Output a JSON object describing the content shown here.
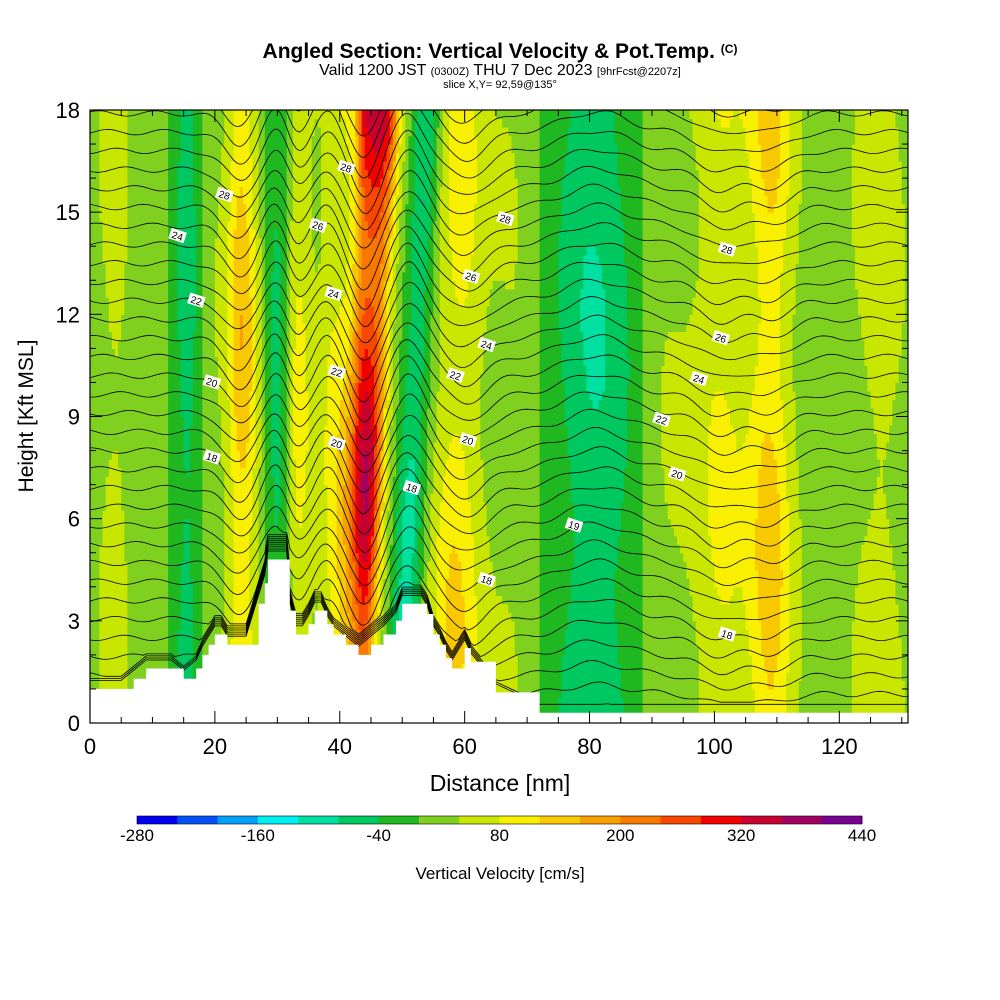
{
  "title": {
    "main": "Angled Section: Vertical Velocity & Pot.Temp.",
    "unit_tag": "(C)",
    "valid_prefix": "Valid 1200 JST",
    "valid_utc": "(0300Z)",
    "valid_date": "THU 7 Dec 2023",
    "valid_fcst": "[9hrFcst@2207z]",
    "slice": "slice X,Y= 92,59@135°"
  },
  "colorbar": {
    "title": "Vertical Velocity [cm/s]",
    "tick_labels": [
      "-280",
      "-160",
      "-40",
      "80",
      "200",
      "320",
      "440"
    ],
    "levels": [
      -280,
      -240,
      -200,
      -160,
      -120,
      -80,
      -40,
      0,
      40,
      80,
      120,
      160,
      200,
      240,
      280,
      320,
      360,
      400,
      440
    ],
    "colors": [
      "#0000f0",
      "#0050f8",
      "#00a0f8",
      "#00f0f0",
      "#00e0a0",
      "#00c860",
      "#20b820",
      "#80d020",
      "#c8e600",
      "#f8f000",
      "#f8c800",
      "#f8a000",
      "#f87800",
      "#f84800",
      "#f00000",
      "#c80030",
      "#a00060",
      "#780090"
    ]
  },
  "chart_data": {
    "type": "heatmap",
    "title": "Angled Section: Vertical Velocity & Pot.Temp. (C)",
    "xlabel": "Distance [nm]",
    "ylabel": "Height [Kft MSL]",
    "xlim": [
      0,
      131
    ],
    "ylim": [
      0,
      18
    ],
    "x_ticks": [
      0,
      20,
      40,
      60,
      80,
      100,
      120
    ],
    "y_ticks": [
      0,
      3,
      6,
      9,
      12,
      15,
      18
    ],
    "fill_variable": "Vertical Velocity [cm/s]",
    "contour_variable": "Potential Temperature (C)",
    "contour_interval": 1,
    "contour_labels": [
      {
        "x": 41,
        "y": 16.3,
        "text": "28"
      },
      {
        "x": 21.5,
        "y": 15.5,
        "text": "28"
      },
      {
        "x": 36.5,
        "y": 14.6,
        "text": "26"
      },
      {
        "x": 66.5,
        "y": 14.8,
        "text": "28"
      },
      {
        "x": 14,
        "y": 14.3,
        "text": "24"
      },
      {
        "x": 102,
        "y": 13.9,
        "text": "28"
      },
      {
        "x": 61,
        "y": 13.1,
        "text": "26"
      },
      {
        "x": 39,
        "y": 12.6,
        "text": "24"
      },
      {
        "x": 17,
        "y": 12.4,
        "text": "22"
      },
      {
        "x": 101,
        "y": 11.3,
        "text": "26"
      },
      {
        "x": 63.5,
        "y": 11.1,
        "text": "24"
      },
      {
        "x": 39.5,
        "y": 10.3,
        "text": "22"
      },
      {
        "x": 58.5,
        "y": 10.2,
        "text": "22"
      },
      {
        "x": 97.5,
        "y": 10.1,
        "text": "24"
      },
      {
        "x": 19.5,
        "y": 10.0,
        "text": "20"
      },
      {
        "x": 91.5,
        "y": 8.9,
        "text": "22"
      },
      {
        "x": 60.5,
        "y": 8.3,
        "text": "20"
      },
      {
        "x": 39.5,
        "y": 8.2,
        "text": "20"
      },
      {
        "x": 19.5,
        "y": 7.8,
        "text": "18"
      },
      {
        "x": 94,
        "y": 7.3,
        "text": "20"
      },
      {
        "x": 51.5,
        "y": 6.9,
        "text": "18"
      },
      {
        "x": 77.5,
        "y": 5.8,
        "text": "19"
      },
      {
        "x": 63.5,
        "y": 4.2,
        "text": "18"
      },
      {
        "x": 102,
        "y": 2.6,
        "text": "18"
      }
    ],
    "terrain_profile": {
      "x": [
        0,
        5,
        7,
        9,
        13,
        15,
        17,
        18,
        19,
        20,
        21,
        22,
        25,
        27,
        28,
        28.5,
        31.5,
        32,
        33,
        34,
        35,
        36,
        37,
        38,
        39,
        41,
        43,
        45,
        47,
        49,
        50,
        53,
        54,
        55,
        56,
        57,
        58,
        60,
        61,
        65,
        72,
        131
      ],
      "y": [
        1,
        1,
        1.3,
        1.6,
        1.6,
        1.3,
        1.6,
        2.0,
        2.3,
        2.6,
        2.6,
        2.3,
        2.3,
        3.5,
        4.1,
        4.8,
        4.8,
        3.3,
        2.6,
        2.6,
        2.9,
        3.3,
        3.3,
        2.9,
        2.6,
        2.3,
        2.0,
        2.3,
        2.6,
        3.0,
        3.5,
        3.5,
        3.2,
        2.6,
        2.3,
        1.9,
        1.6,
        2.2,
        1.8,
        0.9,
        0.3,
        0.3
      ]
    },
    "velocity_features": [
      {
        "x": 1,
        "w": 2.0,
        "v": 10
      },
      {
        "x": 4,
        "w": 2.4,
        "v": 95
      },
      {
        "x": 8,
        "w": 2.2,
        "v": -15
      },
      {
        "x": 12,
        "w": 2.2,
        "v": 70
      },
      {
        "x": 15.5,
        "w": 2.4,
        "v": -130
      },
      {
        "x": 19,
        "w": 1.8,
        "v": 95
      },
      {
        "x": 21,
        "w": 1.6,
        "v": -20
      },
      {
        "x": 24,
        "w": 2.2,
        "v": 210
      },
      {
        "x": 27.5,
        "w": 1.8,
        "v": 40
      },
      {
        "x": 30,
        "w": 1.6,
        "v": -150
      },
      {
        "x": 33,
        "w": 1.8,
        "v": 150
      },
      {
        "x": 36,
        "w": 1.8,
        "v": 30
      },
      {
        "x": 39,
        "w": 1.4,
        "v": 120
      },
      {
        "x": 41,
        "w": 1.3,
        "v": 90
      },
      {
        "x": 44,
        "w": 2.0,
        "v": 400
      },
      {
        "x": 49,
        "w": 1.8,
        "v": 90
      },
      {
        "x": 51.5,
        "w": 2.0,
        "v": -210
      },
      {
        "x": 55,
        "w": 2.2,
        "v": 60
      },
      {
        "x": 59,
        "w": 2.6,
        "v": 150
      },
      {
        "x": 64,
        "w": 2.6,
        "v": 30
      },
      {
        "x": 68,
        "w": 2.8,
        "v": 60
      },
      {
        "x": 74,
        "w": 3.4,
        "v": -20
      },
      {
        "x": 81,
        "w": 4.0,
        "v": -110
      },
      {
        "x": 86,
        "w": 3.0,
        "v": -40
      },
      {
        "x": 91,
        "w": 3.0,
        "v": 60
      },
      {
        "x": 96,
        "w": 3.2,
        "v": 40
      },
      {
        "x": 101,
        "w": 2.6,
        "v": 120
      },
      {
        "x": 105,
        "w": 2.2,
        "v": 50
      },
      {
        "x": 109,
        "w": 2.6,
        "v": 200
      },
      {
        "x": 113,
        "w": 2.2,
        "v": 40
      },
      {
        "x": 117,
        "w": 3.0,
        "v": 0
      },
      {
        "x": 122,
        "w": 3.0,
        "v": 40
      },
      {
        "x": 127,
        "w": 3.0,
        "v": 80
      },
      {
        "x": 131,
        "w": 2.0,
        "v": 20
      }
    ],
    "theta_bumps": [
      {
        "x": 24,
        "w": 2.4,
        "a": -0.9
      },
      {
        "x": 30,
        "w": 2.0,
        "a": 0.8
      },
      {
        "x": 33,
        "w": 1.8,
        "a": -0.7
      },
      {
        "x": 38,
        "w": 1.8,
        "a": 0.6
      },
      {
        "x": 44,
        "w": 2.2,
        "a": -1.3
      },
      {
        "x": 51,
        "w": 2.4,
        "a": 1.1
      },
      {
        "x": 60,
        "w": 3.2,
        "a": -0.8
      },
      {
        "x": 81,
        "w": 5.0,
        "a": 0.6
      },
      {
        "x": 101,
        "w": 3.2,
        "a": -0.6
      },
      {
        "x": 109,
        "w": 3.0,
        "a": -0.5
      }
    ]
  }
}
